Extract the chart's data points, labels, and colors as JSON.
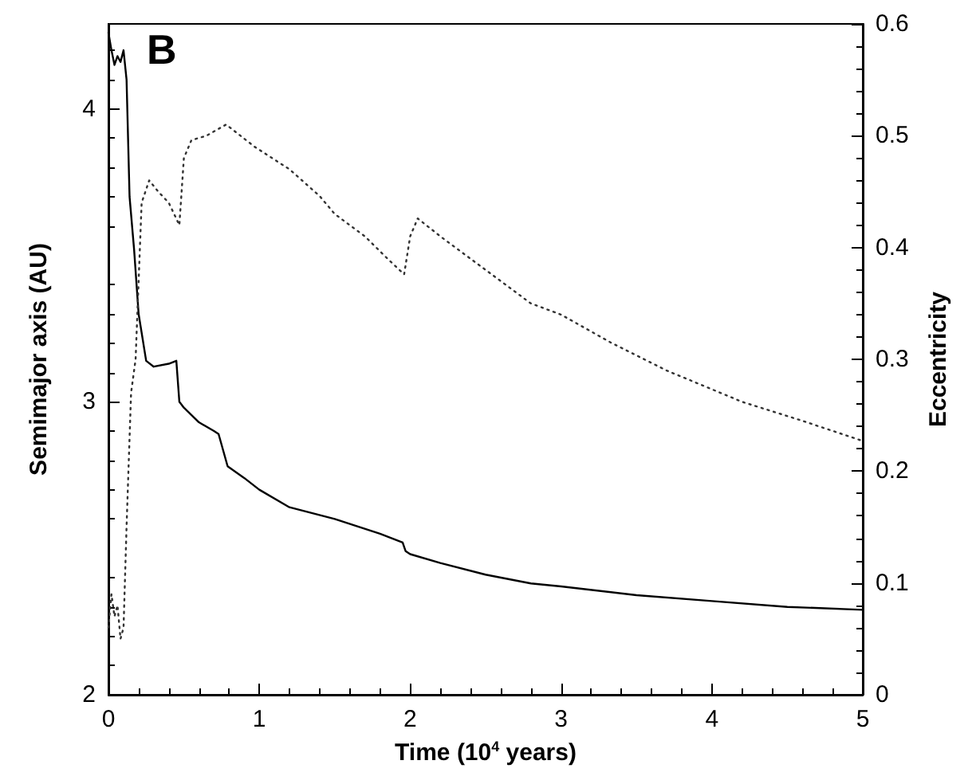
{
  "chart_data": {
    "type": "line",
    "xlabel": "Time (10$^{4}$ years)",
    "ylabel": "Semimajor axis (AU)",
    "y2label": "Eccentricity",
    "annotations": [
      "B"
    ],
    "xlim": [
      0,
      5
    ],
    "xticks": [
      0,
      1,
      2,
      3,
      4,
      5
    ],
    "ylim": [
      2,
      4.29
    ],
    "yticks": [
      2,
      3,
      4
    ],
    "y2lim": [
      0,
      0.6
    ],
    "y2ticks": [
      0,
      0.1,
      0.2,
      0.3,
      0.4,
      0.5,
      0.6
    ],
    "grid": false,
    "marker": "none",
    "series": [
      {
        "color": "#000000",
        "line_style": "solid",
        "x": [
          0,
          0.02,
          0.04,
          0.06,
          0.08,
          0.1,
          0.12,
          0.14,
          0.17,
          0.2,
          0.25,
          0.3,
          0.4,
          0.45,
          0.47,
          0.5,
          0.6,
          0.7,
          0.73,
          0.79,
          0.9,
          1.0,
          1.2,
          1.5,
          1.8,
          1.95,
          1.97,
          2.0,
          2.2,
          2.5,
          2.8,
          3.0,
          3.5,
          4.0,
          4.5,
          5.0
        ],
        "values": [
          4.26,
          4.2,
          4.15,
          4.18,
          4.16,
          4.2,
          4.1,
          3.7,
          3.52,
          3.3,
          3.14,
          3.12,
          3.13,
          3.14,
          3.0,
          2.98,
          2.93,
          2.9,
          2.89,
          2.78,
          2.74,
          2.7,
          2.64,
          2.6,
          2.55,
          2.52,
          2.49,
          2.48,
          2.45,
          2.41,
          2.38,
          2.37,
          2.34,
          2.32,
          2.3,
          2.29
        ]
      },
      {
        "color": "#333333",
        "line_style": "dotted",
        "axis": "y2",
        "x": [
          0,
          0.02,
          0.04,
          0.06,
          0.08,
          0.1,
          0.12,
          0.15,
          0.18,
          0.22,
          0.27,
          0.33,
          0.4,
          0.47,
          0.5,
          0.55,
          0.65,
          0.78,
          0.97,
          1.2,
          1.4,
          1.5,
          1.7,
          1.85,
          1.96,
          2.0,
          2.05,
          2.2,
          2.5,
          2.8,
          3.0,
          3.33,
          3.7,
          4.2,
          4.6,
          5.0
        ],
        "values": [
          0.06,
          0.09,
          0.07,
          0.08,
          0.05,
          0.06,
          0.15,
          0.27,
          0.3,
          0.44,
          0.46,
          0.45,
          0.44,
          0.42,
          0.48,
          0.496,
          0.5,
          0.51,
          0.49,
          0.47,
          0.446,
          0.43,
          0.41,
          0.39,
          0.376,
          0.41,
          0.426,
          0.41,
          0.38,
          0.35,
          0.34,
          0.315,
          0.29,
          0.262,
          0.245,
          0.227
        ]
      }
    ]
  }
}
